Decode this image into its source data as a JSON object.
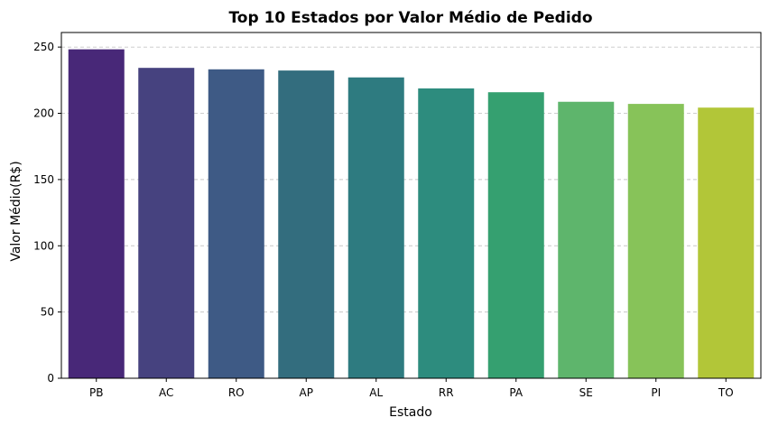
{
  "chart_data": {
    "type": "bar",
    "title": "Top 10 Estados por Valor Médio de Pedido",
    "xlabel": "Estado",
    "ylabel": "Valor Médio(R$)",
    "categories": [
      "PB",
      "AC",
      "RO",
      "AP",
      "AL",
      "RR",
      "PA",
      "SE",
      "PI",
      "TO"
    ],
    "values": [
      248.3,
      234.3,
      233.2,
      232.3,
      227.1,
      218.8,
      215.9,
      208.7,
      207.1,
      204.3
    ],
    "colors": [
      "#482878",
      "#46427f",
      "#3e5a85",
      "#336d7e",
      "#2e7b80",
      "#2d8c7e",
      "#35a070",
      "#5eb56c",
      "#87c359",
      "#b2c638"
    ],
    "ylim": [
      0,
      261
    ],
    "yticks": [
      0,
      50,
      100,
      150,
      200,
      250
    ],
    "grid": "y-dashed",
    "legend": "none"
  }
}
